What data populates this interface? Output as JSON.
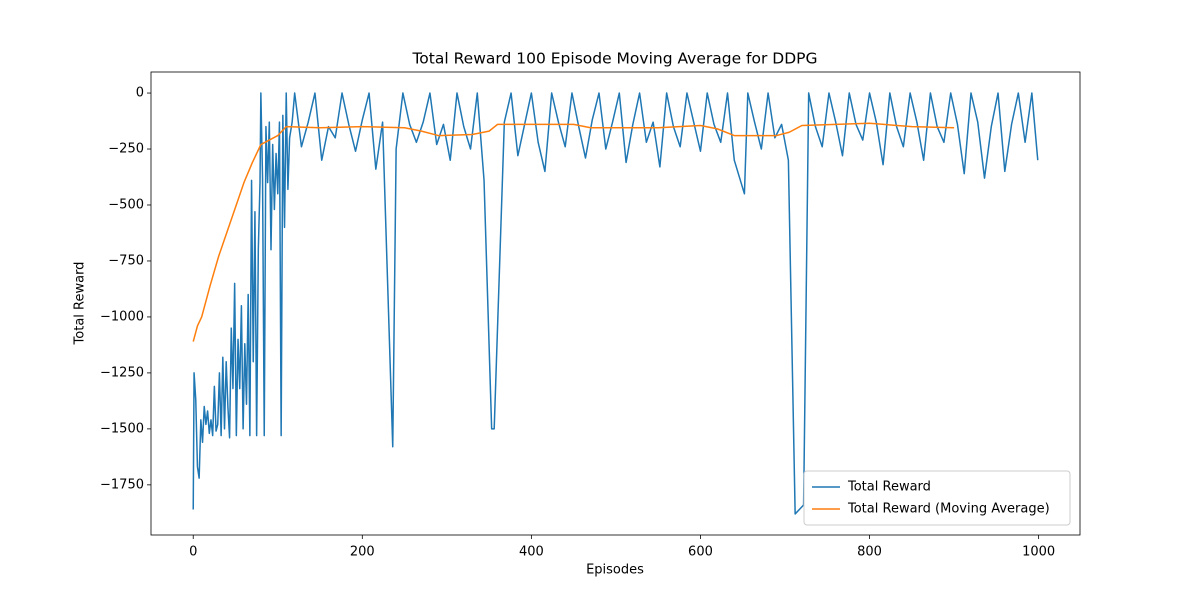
{
  "chart_data": {
    "type": "line",
    "title": "Total Reward 100 Episode Moving Average for DDPG",
    "x_label": "Episodes",
    "y_label": "Total Reward",
    "xlim": [
      -49.95,
      1048.95
    ],
    "ylim": [
      -1974,
      94
    ],
    "xticks": [
      0,
      200,
      400,
      600,
      800,
      1000
    ],
    "yticks": [
      0,
      {
        "value": -250,
        "label": "−250"
      },
      {
        "value": -500,
        "label": "−500"
      },
      {
        "value": -750,
        "label": "−750"
      },
      {
        "value": -1000,
        "label": "−1000"
      },
      {
        "value": -1250,
        "label": "−1250"
      },
      {
        "value": -1500,
        "label": "−1500"
      },
      {
        "value": -1750,
        "label": "−1750"
      }
    ],
    "legend": "lower right",
    "series": [
      {
        "name": "Total Reward",
        "color": "#1f77b4",
        "x": [
          0,
          1,
          3,
          5,
          7,
          9,
          11,
          13,
          15,
          17,
          19,
          21,
          23,
          25,
          27,
          29,
          31,
          33,
          35,
          37,
          39,
          41,
          43,
          45,
          47,
          49,
          51,
          53,
          55,
          57,
          59,
          61,
          63,
          65,
          67,
          69,
          71,
          73,
          75,
          77,
          79,
          80,
          82,
          84,
          86,
          88,
          90,
          92,
          94,
          96,
          98,
          100,
          102,
          104,
          106,
          108,
          110,
          112,
          114,
          117,
          120,
          128,
          136,
          144,
          152,
          160,
          168,
          176,
          184,
          192,
          200,
          208,
          216,
          224,
          236,
          240,
          248,
          256,
          264,
          272,
          280,
          288,
          296,
          304,
          312,
          320,
          328,
          336,
          344,
          353,
          356,
          368,
          376,
          384,
          392,
          400,
          408,
          416,
          424,
          432,
          440,
          448,
          456,
          464,
          472,
          480,
          488,
          496,
          504,
          512,
          520,
          528,
          536,
          544,
          552,
          560,
          568,
          576,
          584,
          592,
          600,
          608,
          616,
          624,
          632,
          640,
          652,
          656,
          664,
          672,
          680,
          688,
          696,
          704,
          712,
          722,
          728,
          736,
          744,
          752,
          760,
          768,
          776,
          784,
          792,
          800,
          808,
          816,
          824,
          832,
          840,
          848,
          856,
          864,
          872,
          880,
          888,
          896,
          904,
          912,
          920,
          928,
          936,
          944,
          952,
          960,
          968,
          976,
          984,
          992,
          999
        ],
        "values": [
          -1860,
          -1250,
          -1370,
          -1670,
          -1720,
          -1460,
          -1560,
          -1400,
          -1480,
          -1420,
          -1520,
          -1460,
          -1530,
          -1310,
          -1510,
          -1480,
          -1250,
          -1530,
          -1180,
          -1500,
          -1200,
          -1400,
          -1540,
          -1050,
          -1320,
          -850,
          -1530,
          -1100,
          -1320,
          -950,
          -1500,
          -1120,
          -1390,
          -900,
          -1530,
          -390,
          -1200,
          -530,
          -1530,
          -700,
          -400,
          0,
          -380,
          -1530,
          -150,
          -400,
          -130,
          -700,
          -230,
          -520,
          -270,
          -450,
          -130,
          -1530,
          -100,
          -600,
          0,
          -430,
          -200,
          -130,
          0,
          -240,
          -130,
          0,
          -300,
          -150,
          -200,
          0,
          -140,
          -260,
          -120,
          0,
          -340,
          -130,
          -1580,
          -250,
          0,
          -140,
          -220,
          -130,
          0,
          -230,
          -140,
          -300,
          0,
          -150,
          -250,
          0,
          -390,
          -1500,
          -1500,
          -130,
          0,
          -280,
          -140,
          0,
          -220,
          -350,
          0,
          -130,
          -240,
          0,
          -150,
          -290,
          -120,
          0,
          -250,
          -130,
          0,
          -310,
          -140,
          0,
          -220,
          -130,
          -330,
          0,
          -150,
          -240,
          0,
          -130,
          -260,
          0,
          -140,
          -220,
          0,
          -300,
          -450,
          0,
          -130,
          -250,
          0,
          -200,
          -140,
          -300,
          -1880,
          -1840,
          0,
          -150,
          -240,
          0,
          -130,
          -280,
          0,
          -140,
          -210,
          0,
          -130,
          -320,
          0,
          -150,
          -240,
          0,
          -130,
          -300,
          0,
          -150,
          -220,
          0,
          -140,
          -360,
          0,
          -130,
          -380,
          -150,
          0,
          -350,
          -140,
          0,
          -220,
          0,
          -300
        ]
      },
      {
        "name": "Total Reward (Moving Average)",
        "color": "#ff7f0e",
        "x": [
          0,
          5,
          10,
          20,
          30,
          40,
          50,
          60,
          70,
          80,
          90,
          100,
          110,
          150,
          200,
          250,
          270,
          290,
          330,
          350,
          360,
          370,
          450,
          470,
          550,
          600,
          620,
          640,
          690,
          705,
          720,
          760,
          800,
          850,
          900
        ],
        "values": [
          -1110,
          -1040,
          -1000,
          -860,
          -730,
          -620,
          -510,
          -400,
          -310,
          -230,
          -210,
          -190,
          -150,
          -155,
          -150,
          -155,
          -170,
          -190,
          -185,
          -170,
          -140,
          -140,
          -140,
          -155,
          -155,
          -145,
          -160,
          -190,
          -190,
          -175,
          -145,
          -140,
          -135,
          -150,
          -155
        ]
      }
    ]
  }
}
